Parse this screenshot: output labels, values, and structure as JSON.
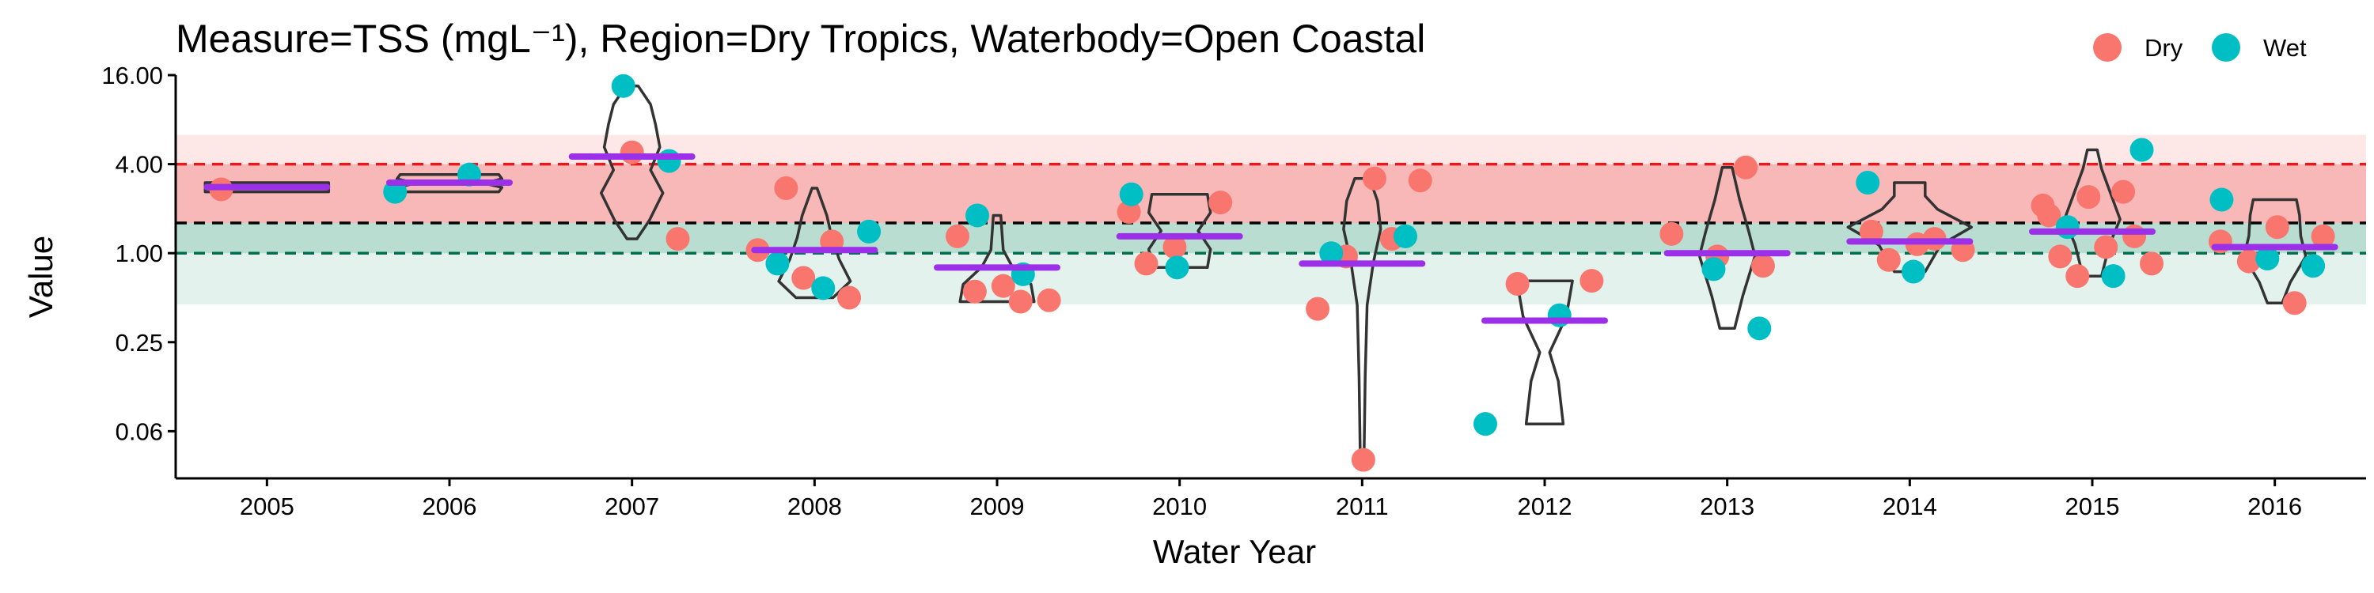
{
  "chart_data": {
    "type": "scatter",
    "title": "Measure=TSS (mgL⁻¹), Region=Dry Tropics, Waterbody=Open Coastal",
    "xlabel": "Water Year",
    "ylabel": "Value",
    "y_scale": "log2",
    "ylim": [
      0.03,
      16
    ],
    "y_ticks": [
      "16.00",
      "4.00",
      "1.00",
      "0.25",
      "0.06"
    ],
    "y_tick_values": [
      16,
      4,
      1,
      0.25,
      0.0625
    ],
    "categories": [
      "2005",
      "2006",
      "2007",
      "2008",
      "2009",
      "2010",
      "2011",
      "2012",
      "2013",
      "2014",
      "2015",
      "2016"
    ],
    "grid": false,
    "legend_position": "top-right",
    "guideline_bands": {
      "upper_outer": [
        1.6,
        6.3
      ],
      "upper_inner": [
        1.6,
        4.0
      ],
      "lower_inner": [
        1.0,
        1.6
      ],
      "lower_outer": [
        0.45,
        1.6
      ]
    },
    "reference_lines": [
      {
        "value": 4.0,
        "color": "#E41A1C",
        "style": "dashed"
      },
      {
        "value": 1.6,
        "color": "#000000",
        "style": "dashed"
      },
      {
        "value": 1.0,
        "color": "#006D4F",
        "style": "dashed"
      }
    ],
    "series": [
      {
        "name": "Dry",
        "color": "#F8766D",
        "points": [
          [
            "2005",
            2.7
          ],
          [
            "2007",
            4.8
          ],
          [
            "2007",
            1.25
          ],
          [
            "2008",
            2.75
          ],
          [
            "2008",
            1.2
          ],
          [
            "2008",
            1.05
          ],
          [
            "2008",
            0.68
          ],
          [
            "2008",
            0.5
          ],
          [
            "2009",
            1.3
          ],
          [
            "2009",
            0.6
          ],
          [
            "2009",
            0.48
          ],
          [
            "2009",
            0.55
          ],
          [
            "2009",
            0.47
          ],
          [
            "2010",
            1.9
          ],
          [
            "2010",
            1.1
          ],
          [
            "2010",
            2.2
          ],
          [
            "2010",
            0.85
          ],
          [
            "2011",
            3.2
          ],
          [
            "2011",
            3.1
          ],
          [
            "2011",
            0.95
          ],
          [
            "2011",
            1.25
          ],
          [
            "2011",
            0.42
          ],
          [
            "2011",
            0.04
          ],
          [
            "2012",
            0.65
          ],
          [
            "2012",
            0.62
          ],
          [
            "2013",
            3.8
          ],
          [
            "2013",
            1.35
          ],
          [
            "2013",
            0.95
          ],
          [
            "2013",
            0.82
          ],
          [
            "2014",
            1.4
          ],
          [
            "2014",
            1.15
          ],
          [
            "2014",
            1.05
          ],
          [
            "2014",
            0.9
          ],
          [
            "2014",
            1.25
          ],
          [
            "2015",
            2.1
          ],
          [
            "2015",
            2.4
          ],
          [
            "2015",
            1.3
          ],
          [
            "2015",
            0.95
          ],
          [
            "2015",
            1.1
          ],
          [
            "2015",
            0.85
          ],
          [
            "2015",
            0.7
          ],
          [
            "2015",
            2.6
          ],
          [
            "2015",
            1.8
          ],
          [
            "2016",
            1.5
          ],
          [
            "2016",
            1.3
          ],
          [
            "2016",
            0.88
          ],
          [
            "2016",
            0.46
          ],
          [
            "2016",
            1.2
          ]
        ]
      },
      {
        "name": "Wet",
        "color": "#00BFC4",
        "points": [
          [
            "2006",
            3.4
          ],
          [
            "2006",
            2.6
          ],
          [
            "2007",
            13.5
          ],
          [
            "2007",
            4.2
          ],
          [
            "2008",
            0.85
          ],
          [
            "2008",
            0.58
          ],
          [
            "2008",
            1.4
          ],
          [
            "2009",
            1.8
          ],
          [
            "2009",
            0.72
          ],
          [
            "2010",
            2.5
          ],
          [
            "2010",
            0.8
          ],
          [
            "2011",
            1.3
          ],
          [
            "2011",
            1.0
          ],
          [
            "2012",
            0.38
          ],
          [
            "2012",
            0.07
          ],
          [
            "2013",
            0.78
          ],
          [
            "2013",
            0.31
          ],
          [
            "2014",
            3.0
          ],
          [
            "2014",
            0.75
          ],
          [
            "2015",
            5.0
          ],
          [
            "2015",
            1.5
          ],
          [
            "2015",
            0.7
          ],
          [
            "2016",
            2.3
          ],
          [
            "2016",
            0.92
          ],
          [
            "2016",
            0.82
          ]
        ]
      }
    ],
    "means": [
      {
        "category": "2005",
        "value": 2.8
      },
      {
        "category": "2006",
        "value": 3.0
      },
      {
        "category": "2007",
        "value": 4.5
      },
      {
        "category": "2008",
        "value": 1.05
      },
      {
        "category": "2009",
        "value": 0.8
      },
      {
        "category": "2010",
        "value": 1.3
      },
      {
        "category": "2011",
        "value": 0.85
      },
      {
        "category": "2012",
        "value": 0.35
      },
      {
        "category": "2013",
        "value": 1.0
      },
      {
        "category": "2014",
        "value": 1.2
      },
      {
        "category": "2015",
        "value": 1.4
      },
      {
        "category": "2016",
        "value": 1.1
      }
    ],
    "violins": [
      {
        "category": "2005",
        "min": 2.6,
        "max": 3.0,
        "shape": [
          [
            0,
            1.0
          ],
          [
            0.2,
            1.0
          ],
          [
            0.4,
            1.0
          ],
          [
            0.5,
            0.3
          ],
          [
            0.6,
            1.0
          ],
          [
            0.8,
            1.0
          ],
          [
            1,
            1.0
          ]
        ]
      },
      {
        "category": "2006",
        "min": 2.6,
        "max": 3.4,
        "shape": [
          [
            0,
            0.8
          ],
          [
            0.25,
            0.85
          ],
          [
            0.5,
            0.55
          ],
          [
            0.75,
            0.85
          ],
          [
            1,
            0.8
          ]
        ]
      },
      {
        "category": "2007",
        "min": 1.25,
        "max": 13.5,
        "shape": [
          [
            0,
            0.08
          ],
          [
            0.12,
            0.28
          ],
          [
            0.3,
            0.5
          ],
          [
            0.45,
            0.3
          ],
          [
            0.6,
            0.45
          ],
          [
            0.75,
            0.38
          ],
          [
            0.88,
            0.3
          ],
          [
            1,
            0.1
          ]
        ]
      },
      {
        "category": "2008",
        "min": 0.5,
        "max": 2.75,
        "shape": [
          [
            0,
            0.3
          ],
          [
            0.15,
            0.58
          ],
          [
            0.35,
            0.4
          ],
          [
            0.55,
            0.28
          ],
          [
            0.75,
            0.2
          ],
          [
            1,
            0.04
          ]
        ]
      },
      {
        "category": "2009",
        "min": 0.47,
        "max": 1.8,
        "shape": [
          [
            0,
            0.6
          ],
          [
            0.2,
            0.55
          ],
          [
            0.4,
            0.25
          ],
          [
            0.6,
            0.1
          ],
          [
            0.8,
            0.08
          ],
          [
            1,
            0.06
          ]
        ]
      },
      {
        "category": "2010",
        "min": 0.8,
        "max": 2.5,
        "shape": [
          [
            0,
            0.45
          ],
          [
            0.25,
            0.5
          ],
          [
            0.5,
            0.3
          ],
          [
            0.75,
            0.5
          ],
          [
            1,
            0.45
          ]
        ]
      },
      {
        "category": "2011",
        "min": 0.04,
        "max": 3.2,
        "shape": [
          [
            0,
            0.03
          ],
          [
            0.3,
            0.05
          ],
          [
            0.55,
            0.08
          ],
          [
            0.7,
            0.18
          ],
          [
            0.82,
            0.3
          ],
          [
            0.92,
            0.25
          ],
          [
            1,
            0.12
          ]
        ]
      },
      {
        "category": "2012",
        "min": 0.07,
        "max": 0.65,
        "shape": [
          [
            0,
            0.3
          ],
          [
            0.3,
            0.22
          ],
          [
            0.5,
            0.08
          ],
          [
            0.75,
            0.35
          ],
          [
            1,
            0.45
          ]
        ]
      },
      {
        "category": "2013",
        "min": 0.31,
        "max": 3.8,
        "shape": [
          [
            0,
            0.12
          ],
          [
            0.2,
            0.25
          ],
          [
            0.45,
            0.45
          ],
          [
            0.6,
            0.35
          ],
          [
            0.8,
            0.2
          ],
          [
            1,
            0.08
          ]
        ]
      },
      {
        "category": "2014",
        "min": 0.75,
        "max": 3.0,
        "shape": [
          [
            0,
            0.25
          ],
          [
            0.3,
            0.5
          ],
          [
            0.5,
            1.0
          ],
          [
            0.7,
            0.45
          ],
          [
            0.85,
            0.25
          ],
          [
            1,
            0.25
          ]
        ]
      },
      {
        "category": "2015",
        "min": 0.7,
        "max": 5.0,
        "shape": [
          [
            0,
            0.15
          ],
          [
            0.25,
            0.28
          ],
          [
            0.45,
            0.45
          ],
          [
            0.65,
            0.3
          ],
          [
            0.85,
            0.15
          ],
          [
            1,
            0.08
          ]
        ]
      },
      {
        "category": "2016",
        "min": 0.46,
        "max": 2.3,
        "shape": [
          [
            0,
            0.12
          ],
          [
            0.2,
            0.25
          ],
          [
            0.45,
            0.5
          ],
          [
            0.65,
            0.42
          ],
          [
            0.85,
            0.4
          ],
          [
            1,
            0.35
          ]
        ]
      }
    ]
  },
  "legend": {
    "items": [
      {
        "label": "Dry",
        "color": "#F8766D"
      },
      {
        "label": "Wet",
        "color": "#00BFC4"
      }
    ]
  },
  "colors": {
    "band_upper_outer": "#FDE7E7",
    "band_upper_inner": "#F8B8B8",
    "band_lower_inner": "#B9DED1",
    "band_lower_outer": "#E4F2EE",
    "mean_bar": "#9B30E8",
    "violin_stroke": "#333333"
  }
}
